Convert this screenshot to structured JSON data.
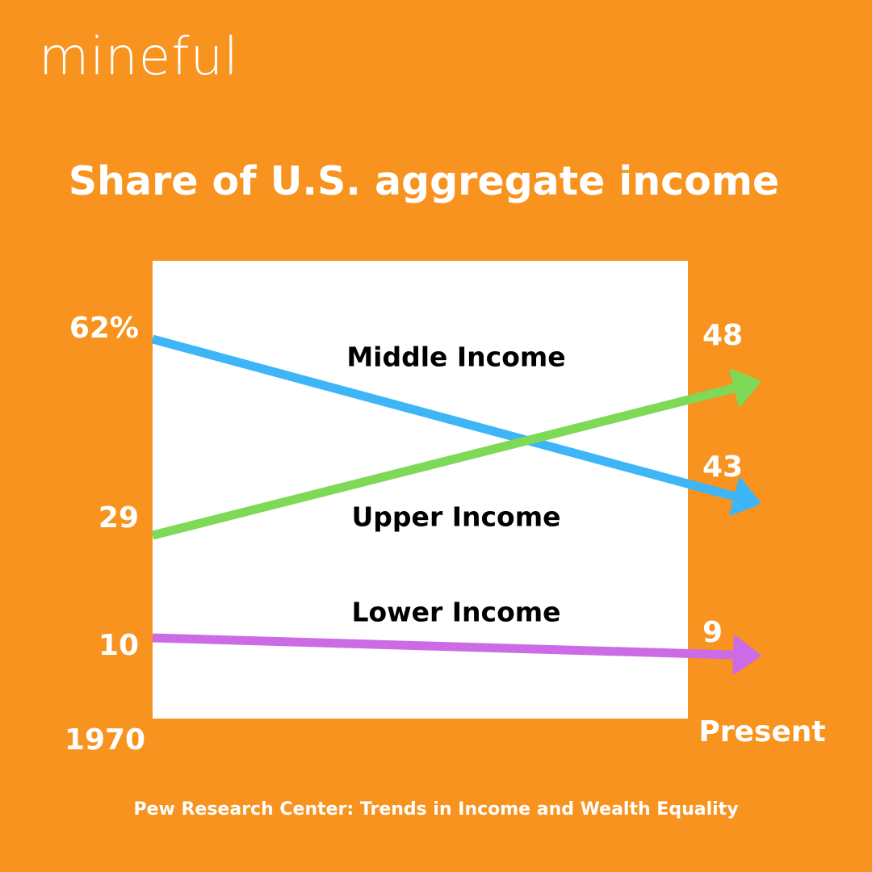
{
  "brand": {
    "name": "mineful"
  },
  "chart_data": {
    "type": "line",
    "title": "Share of U.S. aggregate income",
    "x": [
      "1970",
      "Present"
    ],
    "series": [
      {
        "name": "Middle Income",
        "values": [
          62,
          43
        ],
        "start_label": "62%",
        "end_label": "43",
        "color": "#3DB5F7"
      },
      {
        "name": "Upper Income",
        "values": [
          29,
          48
        ],
        "start_label": "29",
        "end_label": "48",
        "color": "#7ED957"
      },
      {
        "name": "Lower Income",
        "values": [
          10,
          9
        ],
        "start_label": "10",
        "end_label": "9",
        "color": "#CB6CE6"
      }
    ],
    "grid": false,
    "legend": "inline"
  },
  "footer": {
    "source": "Pew Research Center: Trends in Income and Wealth Equality"
  }
}
